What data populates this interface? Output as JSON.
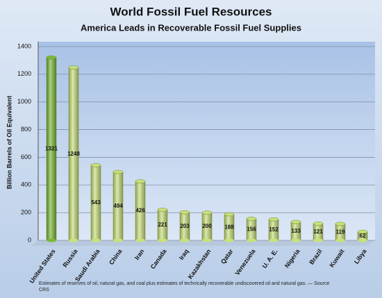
{
  "chart_data": {
    "type": "bar",
    "title": "World Fossil Fuel Resources",
    "subtitle": "America Leads in Recoverable Fossil Fuel Supplies",
    "y_label": "Billion Barrels of Oil Equivalent",
    "categories": [
      "United States",
      "Russia",
      "Saudi Arabia",
      "China",
      "Iran",
      "Canada",
      "Iraq",
      "Kazakhstan",
      "Qatar",
      "Venezuela",
      "U. A. E.",
      "Nigeria",
      "Brazil",
      "Kuwait",
      "Libya"
    ],
    "values": [
      1321,
      1248,
      543,
      494,
      426,
      221,
      203,
      200,
      188,
      156,
      152,
      133,
      121,
      119,
      62
    ],
    "colors": [
      "#7cb83a",
      "#c9e07c",
      "#c9e07c",
      "#c9e07c",
      "#c9e07c",
      "#c9e07c",
      "#c9e07c",
      "#c9e07c",
      "#c9e07c",
      "#c9e07c",
      "#c9e07c",
      "#c9e07c",
      "#c9e07c",
      "#c9e07c",
      "#c9e07c"
    ],
    "ylim": [
      0,
      1400
    ],
    "yticks": [
      0,
      200,
      400,
      600,
      800,
      1000,
      1200,
      1400
    ],
    "grid": true,
    "footnote": "Estimates of reserves of oil, natural gas, and coal plus estimates of technically recoverable undiscovered oil and natural gas. — Source CRS"
  }
}
